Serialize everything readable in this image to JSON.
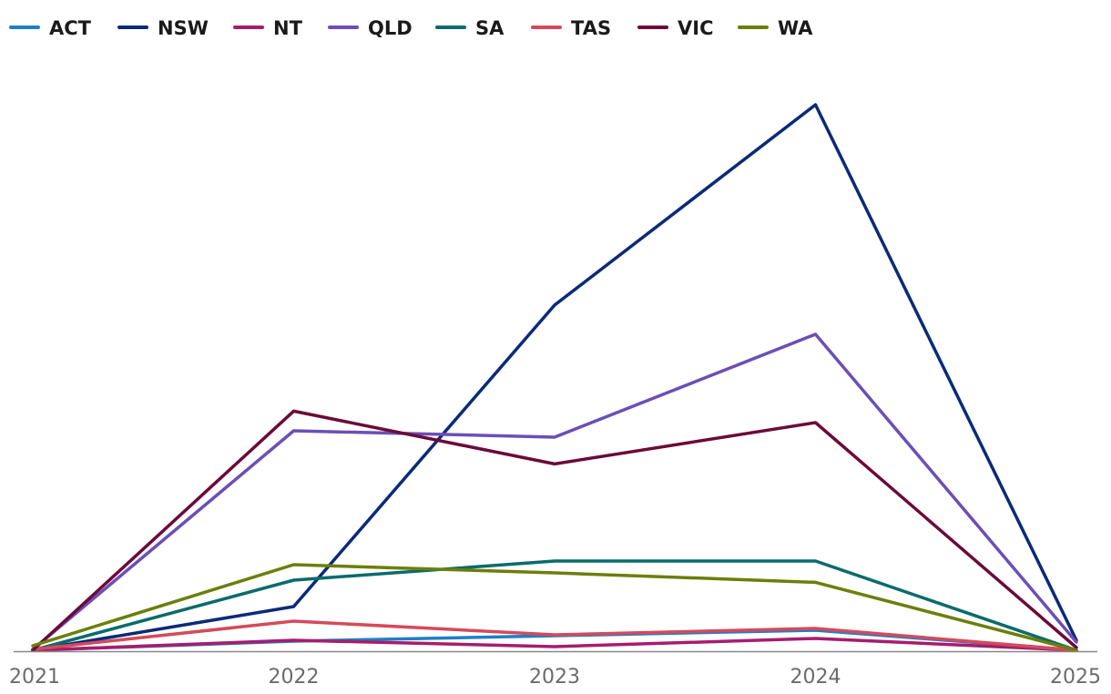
{
  "chart_data": {
    "type": "line",
    "title": "",
    "xlabel": "",
    "ylabel": "",
    "x": [
      "2021",
      "2022",
      "2023",
      "2024",
      "2025"
    ],
    "ylim": [
      0,
      3000
    ],
    "legend_position": "top-left",
    "grid": false,
    "series": [
      {
        "name": "ACT",
        "color": "#1f7fc6",
        "values": [
          5,
          55,
          85,
          115,
          5
        ]
      },
      {
        "name": "NSW",
        "color": "#0b2a78",
        "values": [
          5,
          245,
          1900,
          3000,
          60
        ]
      },
      {
        "name": "NT",
        "color": "#a61d6e",
        "values": [
          5,
          60,
          25,
          70,
          5
        ]
      },
      {
        "name": "QLD",
        "color": "#6b4fb5",
        "values": [
          10,
          1210,
          1175,
          1740,
          50
        ]
      },
      {
        "name": "SA",
        "color": "#0a6b6b",
        "values": [
          5,
          390,
          495,
          495,
          5
        ]
      },
      {
        "name": "TAS",
        "color": "#d54a5a",
        "values": [
          10,
          165,
          90,
          125,
          5
        ]
      },
      {
        "name": "VIC",
        "color": "#6b0a3a",
        "values": [
          5,
          1318,
          1028,
          1255,
          20
        ]
      },
      {
        "name": "WA",
        "color": "#6b7f0a",
        "values": [
          30,
          475,
          430,
          378,
          5
        ]
      }
    ]
  }
}
